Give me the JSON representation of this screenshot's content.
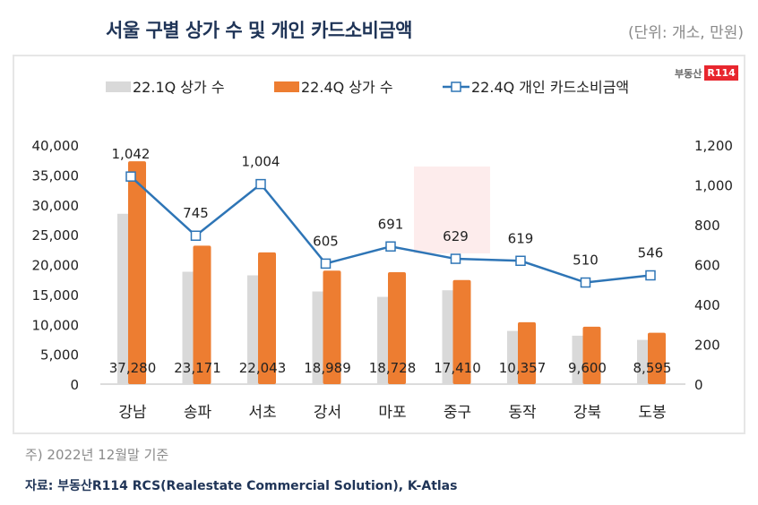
{
  "title": "서울 구별 상가 수 및 개인 카드소비금액",
  "unit": "(단위: 개소, 만원)",
  "logo": "부동산R114",
  "note": "주) 2022년 12월말 기준",
  "source": "자료: 부동산R114 RCS(Realestate Commercial Solution), K-Atlas",
  "colors": {
    "gray": "#d9d9d9",
    "orange": "#ed7d31",
    "line": "#2e75b6"
  },
  "chart_data": {
    "type": "bar+line",
    "categories": [
      "강남",
      "송파",
      "서초",
      "강서",
      "마포",
      "중구",
      "동작",
      "강북",
      "도봉"
    ],
    "series": [
      {
        "name": "22.1Q 상가 수",
        "type": "bar",
        "axis": "left",
        "values": [
          28500,
          18800,
          18200,
          15500,
          14600,
          15700,
          8900,
          8100,
          7400
        ]
      },
      {
        "name": "22.4Q 상가 수",
        "type": "bar",
        "axis": "left",
        "values": [
          37280,
          23171,
          22043,
          18989,
          18728,
          17410,
          10357,
          9600,
          8595
        ],
        "labels": [
          "37,280",
          "23,171",
          "22,043",
          "18,989",
          "18,728",
          "17,410",
          "10,357",
          "9,600",
          "8,595"
        ]
      },
      {
        "name": "22.4Q 개인 카드소비금액",
        "type": "line",
        "axis": "right",
        "values": [
          1042,
          745,
          1004,
          605,
          691,
          629,
          619,
          510,
          546
        ],
        "labels": [
          "1,042",
          "745",
          "1,004",
          "605",
          "691",
          "629",
          "619",
          "510",
          "546"
        ]
      }
    ],
    "y_left": {
      "range": [
        0,
        40000
      ],
      "ticks": [
        "0",
        "5,000",
        "10,000",
        "15,000",
        "20,000",
        "25,000",
        "30,000",
        "35,000",
        "40,000"
      ]
    },
    "y_right": {
      "range": [
        0,
        1200
      ],
      "ticks": [
        "0",
        "200",
        "400",
        "600",
        "800",
        "1,000",
        "1,200"
      ]
    },
    "grid": false,
    "legend": "top"
  }
}
